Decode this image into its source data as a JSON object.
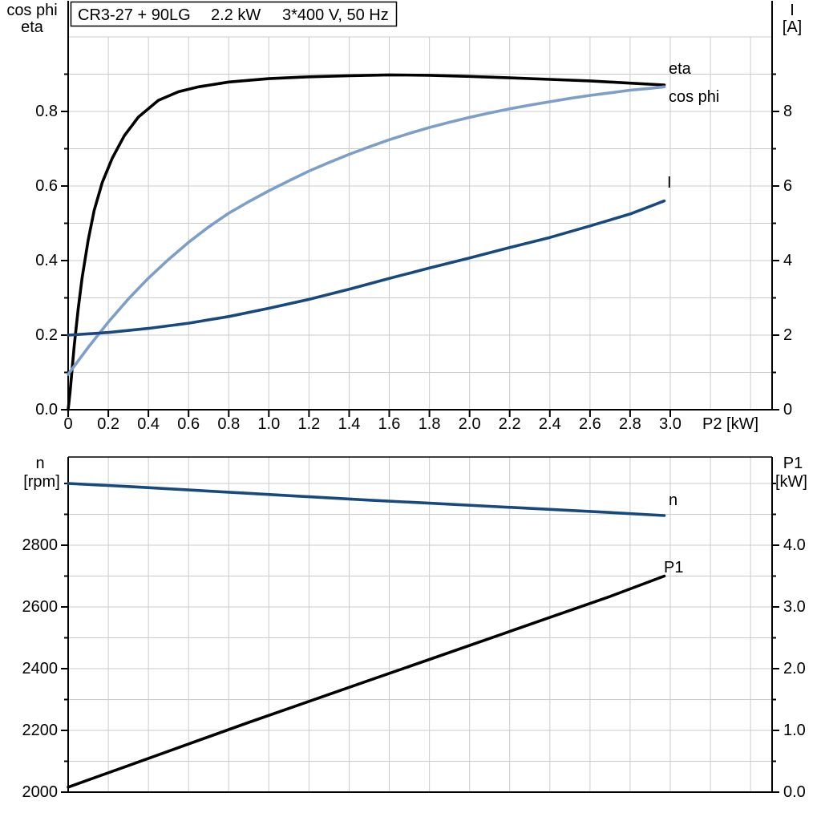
{
  "colors": {
    "black": "#000000",
    "light_blue": "#7D9EC7",
    "dark_blue": "#17497E",
    "grid": "#CBCBCB"
  },
  "chart_data": [
    {
      "type": "line",
      "title": "CR3-27 + 90LG   2.2 kW   3*400 V, 50 Hz",
      "title_parts": [
        "CR3-27 + 90LG",
        "2.2 kW",
        "3*400 V, 50 Hz"
      ],
      "grid": "on",
      "legend_position": "end-of-curve-labels",
      "x_axis": {
        "label": "P2 [kW]",
        "min": 0,
        "max": 3.0,
        "step": 0.2,
        "ticks": [
          {
            "v": 0,
            "label": "0"
          },
          {
            "v": 0.2,
            "label": "0.2"
          },
          {
            "v": 0.4,
            "label": "0.4"
          },
          {
            "v": 0.6,
            "label": "0.6"
          },
          {
            "v": 0.8,
            "label": "0.8"
          },
          {
            "v": 1.0,
            "label": "1.0"
          },
          {
            "v": 1.2,
            "label": "1.2"
          },
          {
            "v": 1.4,
            "label": "1.4"
          },
          {
            "v": 1.6,
            "label": "1.6"
          },
          {
            "v": 1.8,
            "label": "1.8"
          },
          {
            "v": 2.0,
            "label": "2.0"
          },
          {
            "v": 2.2,
            "label": "2.2"
          },
          {
            "v": 2.4,
            "label": "2.4"
          },
          {
            "v": 2.6,
            "label": "2.6"
          },
          {
            "v": 2.8,
            "label": "2.8"
          },
          {
            "v": 3.0,
            "label": "3.0"
          }
        ]
      },
      "left_axis": {
        "label_lines": [
          "cos phi",
          "eta"
        ],
        "min": 0,
        "max": 1.0,
        "step": 0.2,
        "ticks": [
          {
            "v": 0.0,
            "label": "0.0"
          },
          {
            "v": 0.2,
            "label": "0.2"
          },
          {
            "v": 0.4,
            "label": "0.4"
          },
          {
            "v": 0.6,
            "label": "0.6"
          },
          {
            "v": 0.8,
            "label": "0.8"
          }
        ]
      },
      "right_axis": {
        "label_lines": [
          "I",
          "[A]"
        ],
        "min": 0,
        "max": 10,
        "step": 2,
        "ticks": [
          {
            "v": 0,
            "label": "0"
          },
          {
            "v": 2,
            "label": "2"
          },
          {
            "v": 4,
            "label": "4"
          },
          {
            "v": 6,
            "label": "6"
          },
          {
            "v": 8,
            "label": "8"
          }
        ]
      },
      "series": [
        {
          "name": "eta",
          "axis": "left",
          "color": "#000000",
          "points": [
            [
              0,
              0
            ],
            [
              0.01,
              0.05
            ],
            [
              0.02,
              0.11
            ],
            [
              0.03,
              0.17
            ],
            [
              0.05,
              0.27
            ],
            [
              0.07,
              0.355
            ],
            [
              0.1,
              0.455
            ],
            [
              0.13,
              0.535
            ],
            [
              0.17,
              0.61
            ],
            [
              0.22,
              0.675
            ],
            [
              0.28,
              0.735
            ],
            [
              0.35,
              0.785
            ],
            [
              0.45,
              0.83
            ],
            [
              0.55,
              0.853
            ],
            [
              0.65,
              0.866
            ],
            [
              0.8,
              0.879
            ],
            [
              1.0,
              0.888
            ],
            [
              1.2,
              0.893
            ],
            [
              1.4,
              0.896
            ],
            [
              1.6,
              0.898
            ],
            [
              1.8,
              0.897
            ],
            [
              2.0,
              0.894
            ],
            [
              2.2,
              0.89
            ],
            [
              2.4,
              0.886
            ],
            [
              2.6,
              0.882
            ],
            [
              2.8,
              0.876
            ],
            [
              2.97,
              0.871
            ]
          ]
        },
        {
          "name": "cos phi",
          "axis": "left",
          "color": "#7D9EC7",
          "points": [
            [
              0,
              0.095
            ],
            [
              0.1,
              0.167
            ],
            [
              0.2,
              0.235
            ],
            [
              0.3,
              0.297
            ],
            [
              0.4,
              0.353
            ],
            [
              0.5,
              0.403
            ],
            [
              0.6,
              0.449
            ],
            [
              0.7,
              0.49
            ],
            [
              0.8,
              0.527
            ],
            [
              0.9,
              0.558
            ],
            [
              1.0,
              0.587
            ],
            [
              1.1,
              0.614
            ],
            [
              1.2,
              0.64
            ],
            [
              1.3,
              0.663
            ],
            [
              1.4,
              0.685
            ],
            [
              1.5,
              0.705
            ],
            [
              1.6,
              0.724
            ],
            [
              1.7,
              0.741
            ],
            [
              1.8,
              0.757
            ],
            [
              1.9,
              0.771
            ],
            [
              2.0,
              0.784
            ],
            [
              2.1,
              0.796
            ],
            [
              2.2,
              0.807
            ],
            [
              2.3,
              0.817
            ],
            [
              2.4,
              0.826
            ],
            [
              2.5,
              0.835
            ],
            [
              2.6,
              0.843
            ],
            [
              2.7,
              0.85
            ],
            [
              2.8,
              0.857
            ],
            [
              2.9,
              0.862
            ],
            [
              2.97,
              0.866
            ]
          ]
        },
        {
          "name": "I",
          "axis": "right",
          "color": "#17497E",
          "points": [
            [
              0,
              2.0
            ],
            [
              0.2,
              2.07
            ],
            [
              0.4,
              2.18
            ],
            [
              0.6,
              2.32
            ],
            [
              0.8,
              2.5
            ],
            [
              1.0,
              2.72
            ],
            [
              1.2,
              2.96
            ],
            [
              1.4,
              3.23
            ],
            [
              1.6,
              3.52
            ],
            [
              1.8,
              3.8
            ],
            [
              2.0,
              4.07
            ],
            [
              2.2,
              4.35
            ],
            [
              2.4,
              4.62
            ],
            [
              2.6,
              4.93
            ],
            [
              2.8,
              5.25
            ],
            [
              2.97,
              5.6
            ]
          ]
        }
      ]
    },
    {
      "type": "line",
      "title": "",
      "grid": "on",
      "x_axis": {
        "label": "",
        "min": 0,
        "max": 3.0,
        "step": 0.2,
        "ticks": []
      },
      "left_axis": {
        "label_lines": [
          "n",
          "[rpm]"
        ],
        "min": 2000,
        "max": 3086,
        "step": 200,
        "ticks": [
          {
            "v": 2000,
            "label": "2000"
          },
          {
            "v": 2200,
            "label": "2200"
          },
          {
            "v": 2400,
            "label": "2400"
          },
          {
            "v": 2600,
            "label": "2600"
          },
          {
            "v": 2800,
            "label": "2800"
          }
        ]
      },
      "right_axis": {
        "label_lines": [
          "P1",
          "[kW]"
        ],
        "min": 0,
        "max": 5.4,
        "step": 1.0,
        "ticks": [
          {
            "v": 0,
            "label": "0.0"
          },
          {
            "v": 1,
            "label": "1.0"
          },
          {
            "v": 2,
            "label": "2.0"
          },
          {
            "v": 3,
            "label": "3.0"
          },
          {
            "v": 4,
            "label": "4.0"
          }
        ]
      },
      "series": [
        {
          "name": "n",
          "axis": "left",
          "color": "#17497E",
          "points": [
            [
              0,
              3000
            ],
            [
              0.3,
              2990
            ],
            [
              0.6,
              2979
            ],
            [
              0.9,
              2968
            ],
            [
              1.2,
              2957
            ],
            [
              1.5,
              2946
            ],
            [
              1.8,
              2936
            ],
            [
              2.1,
              2926
            ],
            [
              2.4,
              2916
            ],
            [
              2.7,
              2906
            ],
            [
              2.97,
              2896
            ]
          ]
        },
        {
          "name": "P1",
          "axis": "right",
          "color": "#000000",
          "points": [
            [
              0,
              0.08
            ],
            [
              0.3,
              0.43
            ],
            [
              0.6,
              0.78
            ],
            [
              0.9,
              1.13
            ],
            [
              1.2,
              1.47
            ],
            [
              1.5,
              1.81
            ],
            [
              1.8,
              2.15
            ],
            [
              2.1,
              2.49
            ],
            [
              2.4,
              2.83
            ],
            [
              2.7,
              3.17
            ],
            [
              2.97,
              3.5
            ]
          ]
        }
      ]
    }
  ]
}
